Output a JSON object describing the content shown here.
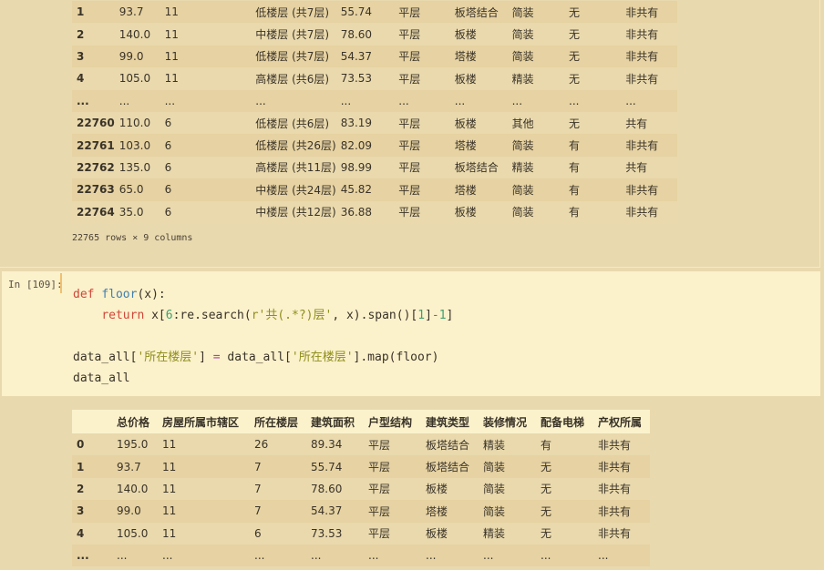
{
  "top_output": {
    "rows": [
      [
        "1",
        "93.7",
        "11",
        "低楼层 (共7层)",
        "55.74",
        "平层",
        "板塔结合",
        "简装",
        "无",
        "非共有"
      ],
      [
        "2",
        "140.0",
        "11",
        "中楼层 (共7层)",
        "78.60",
        "平层",
        "板楼",
        "简装",
        "无",
        "非共有"
      ],
      [
        "3",
        "99.0",
        "11",
        "低楼层 (共7层)",
        "54.37",
        "平层",
        "塔楼",
        "简装",
        "无",
        "非共有"
      ],
      [
        "4",
        "105.0",
        "11",
        "高楼层 (共6层)",
        "73.53",
        "平层",
        "板楼",
        "精装",
        "无",
        "非共有"
      ],
      [
        "...",
        "...",
        "...",
        "...",
        "...",
        "...",
        "...",
        "...",
        "...",
        "..."
      ],
      [
        "22760",
        "110.0",
        "6",
        "低楼层 (共6层)",
        "83.19",
        "平层",
        "板楼",
        "其他",
        "无",
        "共有"
      ],
      [
        "22761",
        "103.0",
        "6",
        "低楼层 (共26层)",
        "82.09",
        "平层",
        "塔楼",
        "简装",
        "有",
        "非共有"
      ],
      [
        "22762",
        "135.0",
        "6",
        "高楼层 (共11层)",
        "98.99",
        "平层",
        "板塔结合",
        "精装",
        "有",
        "共有"
      ],
      [
        "22763",
        "65.0",
        "6",
        "中楼层 (共24层)",
        "45.82",
        "平层",
        "塔楼",
        "简装",
        "有",
        "非共有"
      ],
      [
        "22764",
        "35.0",
        "6",
        "中楼层 (共12层)",
        "36.88",
        "平层",
        "板楼",
        "简装",
        "有",
        "非共有"
      ]
    ],
    "shape": "22765 rows × 9 columns"
  },
  "input_cell": {
    "prompt": "In [109]:",
    "code": {
      "l1_kw": "def",
      "l1_fn": "floor",
      "l1_rest": "(x):",
      "l2_kw": "return",
      "l2_a": " x[",
      "l2_n6": "6",
      "l2_b": ":re.search(",
      "l2_str": "r'共(.*?)层'",
      "l2_c": ", x).span()[",
      "l2_n1": "1",
      "l2_d": "]",
      "l2_op": "-",
      "l2_n1b": "1",
      "l2_e": "]",
      "l4_a": "data_all[",
      "l4_str1": "'所在楼层'",
      "l4_b": "] ",
      "l4_op": "=",
      "l4_c": " data_all[",
      "l4_str2": "'所在楼层'",
      "l4_d": "].map(floor)",
      "l5": "data_all"
    }
  },
  "bottom_output": {
    "columns": [
      "",
      "总价格",
      "房屋所属市辖区",
      "所在楼层",
      "建筑面积",
      "户型结构",
      "建筑类型",
      "装修情况",
      "配备电梯",
      "产权所属"
    ],
    "rows": [
      [
        "0",
        "195.0",
        "11",
        "26",
        "89.34",
        "平层",
        "板塔结合",
        "精装",
        "有",
        "非共有"
      ],
      [
        "1",
        "93.7",
        "11",
        "7",
        "55.74",
        "平层",
        "板塔结合",
        "简装",
        "无",
        "非共有"
      ],
      [
        "2",
        "140.0",
        "11",
        "7",
        "78.60",
        "平层",
        "板楼",
        "简装",
        "无",
        "非共有"
      ],
      [
        "3",
        "99.0",
        "11",
        "7",
        "54.37",
        "平层",
        "塔楼",
        "简装",
        "无",
        "非共有"
      ],
      [
        "4",
        "105.0",
        "11",
        "6",
        "73.53",
        "平层",
        "板楼",
        "精装",
        "无",
        "非共有"
      ],
      [
        "...",
        "...",
        "...",
        "...",
        "...",
        "...",
        "...",
        "...",
        "...",
        "..."
      ]
    ]
  }
}
